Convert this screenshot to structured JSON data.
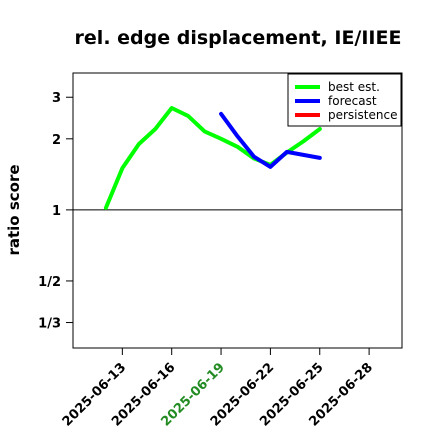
{
  "chart_data": {
    "type": "line",
    "title": "rel. edge displacement, IE/IIEE",
    "ylabel": "ratio score",
    "xlabel": "",
    "log_y": true,
    "xlim": [
      "2025-06-10",
      "2025-06-30"
    ],
    "ylim": [
      0.26,
      3.8
    ],
    "yticks": [
      {
        "value": 3,
        "label": "3"
      },
      {
        "value": 2,
        "label": "2"
      },
      {
        "value": 1,
        "label": "1"
      },
      {
        "value": 0.5,
        "label": "1/2"
      },
      {
        "value": 0.3333,
        "label": "1/3"
      }
    ],
    "xticks": [
      {
        "date": "2025-06-13",
        "label": "2025-06-13",
        "color": "#000000"
      },
      {
        "date": "2025-06-16",
        "label": "2025-06-16",
        "color": "#000000"
      },
      {
        "date": "2025-06-19",
        "label": "2025-06-19",
        "color": "#228B22"
      },
      {
        "date": "2025-06-22",
        "label": "2025-06-22",
        "color": "#000000"
      },
      {
        "date": "2025-06-25",
        "label": "2025-06-25",
        "color": "#000000"
      },
      {
        "date": "2025-06-28",
        "label": "2025-06-28",
        "color": "#000000"
      }
    ],
    "reference_line": 1,
    "legend_position": "top-right",
    "series": [
      {
        "name": "best est.",
        "color": "#00ff00",
        "points": [
          {
            "x": "2025-06-12",
            "y": 1.02
          },
          {
            "x": "2025-06-13",
            "y": 1.5
          },
          {
            "x": "2025-06-14",
            "y": 1.9
          },
          {
            "x": "2025-06-15",
            "y": 2.2
          },
          {
            "x": "2025-06-16",
            "y": 2.7
          },
          {
            "x": "2025-06-17",
            "y": 2.5
          },
          {
            "x": "2025-06-18",
            "y": 2.15
          },
          {
            "x": "2025-06-19",
            "y": 2.0
          },
          {
            "x": "2025-06-20",
            "y": 1.85
          },
          {
            "x": "2025-06-21",
            "y": 1.65
          },
          {
            "x": "2025-06-22",
            "y": 1.55
          },
          {
            "x": "2025-06-23",
            "y": 1.75
          },
          {
            "x": "2025-06-24",
            "y": 1.95
          },
          {
            "x": "2025-06-25",
            "y": 2.2
          }
        ]
      },
      {
        "name": "forecast",
        "color": "#0000ff",
        "points": [
          {
            "x": "2025-06-19",
            "y": 2.55
          },
          {
            "x": "2025-06-20",
            "y": 2.05
          },
          {
            "x": "2025-06-21",
            "y": 1.68
          },
          {
            "x": "2025-06-22",
            "y": 1.52
          },
          {
            "x": "2025-06-23",
            "y": 1.76
          },
          {
            "x": "2025-06-24",
            "y": 1.71
          },
          {
            "x": "2025-06-25",
            "y": 1.66
          }
        ]
      },
      {
        "name": "persistence",
        "color": "#ff0000",
        "points": []
      }
    ]
  }
}
